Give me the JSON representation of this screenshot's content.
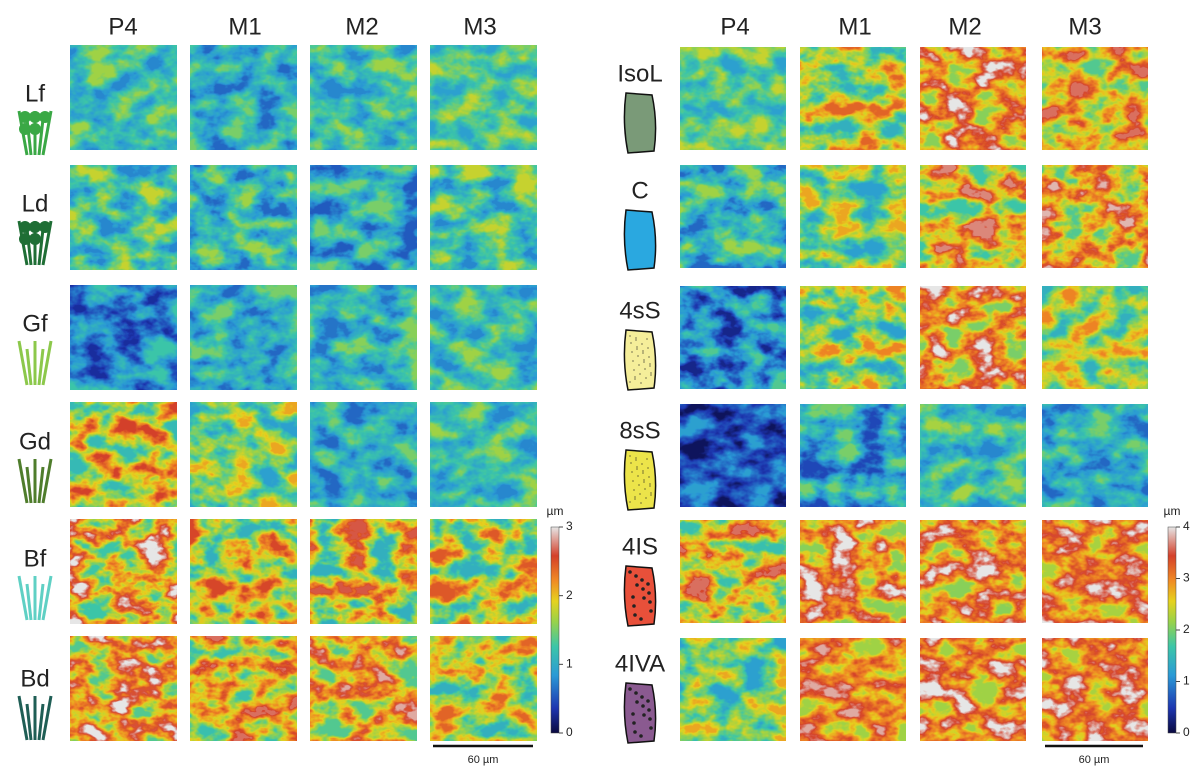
{
  "left_panel": {
    "columns": [
      "P4",
      "M1",
      "M2",
      "M3"
    ],
    "rows": [
      "Lf",
      "Ld",
      "Gf",
      "Gd",
      "Bf",
      "Bd"
    ],
    "colorbar": {
      "unit": "µm",
      "ticks": [
        0,
        1,
        2,
        3
      ]
    },
    "scale_bar": "60 µm"
  },
  "right_panel": {
    "columns": [
      "P4",
      "M1",
      "M2",
      "M3"
    ],
    "rows": [
      "IsoL",
      "C",
      "4sS",
      "8sS",
      "4IS",
      "4IVA"
    ],
    "colorbar": {
      "unit": "µm",
      "ticks": [
        0,
        1,
        2,
        3,
        4
      ]
    },
    "scale_bar": "60 µm"
  }
}
